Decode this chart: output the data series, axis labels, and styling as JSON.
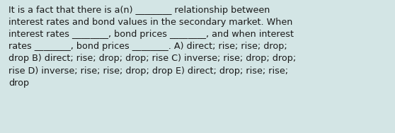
{
  "text": "It is a fact that there is a(n) ________ relationship between\ninterest rates and bond values in the secondary market. When\ninterest rates ________, bond prices ________, and when interest\nrates ________, bond prices ________. A) direct; rise; rise; drop;\ndrop B) direct; rise; drop; drop; rise C) inverse; rise; drop; drop;\nrise D) inverse; rise; rise; drop; drop E) direct; drop; rise; rise;\ndrop",
  "background_color": "#d3e5e5",
  "text_color": "#1a1a1a",
  "font_size": 9.2,
  "fig_width": 5.58,
  "fig_height": 1.88,
  "dpi": 100
}
